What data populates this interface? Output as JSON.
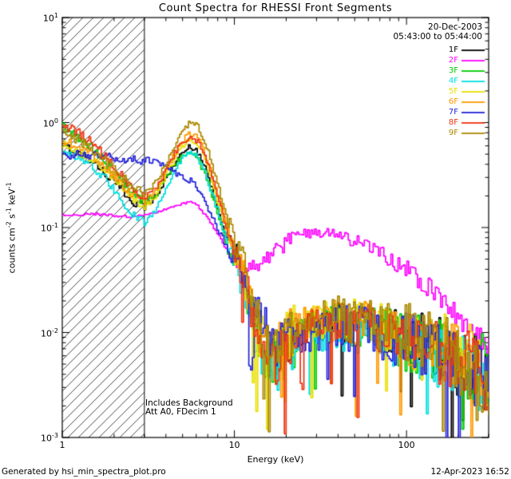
{
  "header": {
    "date": "20-Dec-2003",
    "time_range": "05:43:00 to 05:44:00"
  },
  "annotations": {
    "line1": "Includes Background",
    "line2": "Att A0, FDecim 1"
  },
  "footer": {
    "left": "Generated by hsi_min_spectra_plot.pro",
    "right": "12-Apr-2023 16:52"
  },
  "chart_data": {
    "type": "line",
    "title": "Count Spectra for RHESSI Front Segments",
    "xlabel": "Energy (keV)",
    "ylabel": "counts cm⁻² s⁻¹ keV⁻¹",
    "ylabel_parts": [
      {
        "t": "counts cm"
      },
      {
        "sup": "-2"
      },
      {
        "t": " s"
      },
      {
        "sup": "-1"
      },
      {
        "t": " keV"
      },
      {
        "sup": "-1"
      }
    ],
    "xscale": "log",
    "yscale": "log",
    "xlim": [
      1,
      300
    ],
    "ylim": [
      0.001,
      10
    ],
    "x_major_ticks": [
      1,
      10,
      100
    ],
    "x_tick_labels": [
      "1",
      "10",
      "100"
    ],
    "y_tick_exponents": [
      1,
      0,
      -1,
      -2,
      -3
    ],
    "hatched_low_energy_region_kev": [
      1,
      3
    ],
    "legend_position": "top-right",
    "grid": false,
    "series": [
      {
        "name": "1F",
        "color": "#000000",
        "x": [
          1.0,
          1.2,
          1.45,
          1.75,
          2.1,
          2.5,
          3.0,
          3.5,
          4.0,
          4.5,
          5.0,
          5.5,
          6.0,
          6.5,
          7.0,
          8.0,
          9.0,
          10,
          11,
          12,
          13,
          15,
          17,
          20,
          25,
          30,
          40,
          50,
          60,
          80,
          100,
          130,
          170,
          220,
          300
        ],
        "y": [
          0.6,
          0.52,
          0.45,
          0.33,
          0.25,
          0.18,
          0.16,
          0.2,
          0.3,
          0.42,
          0.52,
          0.6,
          0.55,
          0.42,
          0.3,
          0.15,
          0.08,
          0.05,
          0.04,
          0.022,
          0.013,
          0.007,
          0.006,
          0.008,
          0.011,
          0.012,
          0.013,
          0.012,
          0.012,
          0.01,
          0.009,
          0.008,
          0.006,
          0.005,
          0.004
        ]
      },
      {
        "name": "2F",
        "color": "#ff00ff",
        "x": [
          1.0,
          1.5,
          2.0,
          2.5,
          3.0,
          3.5,
          4.0,
          4.5,
          5.0,
          5.5,
          6.0,
          6.5,
          7.0,
          8.0,
          9.0,
          10,
          12,
          14,
          17,
          20,
          25,
          30,
          35,
          40,
          50,
          60,
          80,
          100,
          130,
          170,
          220,
          300
        ],
        "y": [
          0.13,
          0.135,
          0.13,
          0.125,
          0.13,
          0.14,
          0.15,
          0.16,
          0.17,
          0.175,
          0.165,
          0.14,
          0.12,
          0.085,
          0.06,
          0.048,
          0.04,
          0.045,
          0.058,
          0.072,
          0.088,
          0.092,
          0.09,
          0.085,
          0.075,
          0.065,
          0.05,
          0.04,
          0.028,
          0.018,
          0.012,
          0.007
        ]
      },
      {
        "name": "3F",
        "color": "#00cc00",
        "x": [
          1.0,
          1.2,
          1.45,
          1.75,
          2.1,
          2.5,
          3.0,
          3.5,
          4.0,
          4.5,
          5.0,
          5.5,
          6.0,
          6.5,
          7.0,
          8.0,
          9.0,
          10,
          11,
          12,
          13,
          15,
          17,
          20,
          25,
          30,
          40,
          50,
          60,
          80,
          100,
          130,
          170,
          220,
          300
        ],
        "y": [
          0.9,
          0.75,
          0.58,
          0.42,
          0.3,
          0.22,
          0.17,
          0.21,
          0.3,
          0.4,
          0.47,
          0.5,
          0.46,
          0.36,
          0.26,
          0.13,
          0.07,
          0.045,
          0.035,
          0.02,
          0.012,
          0.006,
          0.005,
          0.007,
          0.01,
          0.011,
          0.012,
          0.011,
          0.011,
          0.009,
          0.008,
          0.007,
          0.006,
          0.005,
          0.004
        ]
      },
      {
        "name": "4F",
        "color": "#00e0e0",
        "x": [
          1.0,
          1.2,
          1.45,
          1.75,
          2.1,
          2.5,
          3.0,
          3.5,
          4.0,
          4.5,
          5.0,
          5.5,
          6.0,
          6.5,
          7.0,
          8.0,
          9.0,
          10,
          11,
          12,
          13,
          15,
          17,
          20,
          25,
          30,
          40,
          50,
          60,
          80,
          100,
          130,
          170,
          220,
          300
        ],
        "y": [
          0.55,
          0.48,
          0.4,
          0.3,
          0.2,
          0.14,
          0.11,
          0.15,
          0.24,
          0.36,
          0.46,
          0.52,
          0.48,
          0.38,
          0.27,
          0.14,
          0.07,
          0.045,
          0.034,
          0.018,
          0.01,
          0.005,
          0.004,
          0.007,
          0.009,
          0.01,
          0.011,
          0.01,
          0.01,
          0.009,
          0.008,
          0.006,
          0.005,
          0.004,
          0.003
        ]
      },
      {
        "name": "5F",
        "color": "#e8e000",
        "x": [
          1.0,
          1.2,
          1.45,
          1.75,
          2.1,
          2.5,
          3.0,
          3.5,
          4.0,
          4.5,
          5.0,
          5.5,
          6.0,
          6.5,
          7.0,
          8.0,
          9.0,
          10,
          11,
          12,
          13,
          15,
          17,
          20,
          25,
          30,
          40,
          50,
          60,
          80,
          100,
          130,
          170,
          220,
          300
        ],
        "y": [
          0.62,
          0.55,
          0.45,
          0.35,
          0.26,
          0.19,
          0.16,
          0.2,
          0.32,
          0.46,
          0.6,
          0.7,
          0.64,
          0.5,
          0.35,
          0.17,
          0.09,
          0.055,
          0.042,
          0.024,
          0.014,
          0.007,
          0.006,
          0.009,
          0.012,
          0.013,
          0.014,
          0.013,
          0.012,
          0.011,
          0.009,
          0.008,
          0.007,
          0.006,
          0.005
        ]
      },
      {
        "name": "6F",
        "color": "#ff9900",
        "x": [
          1.0,
          1.2,
          1.45,
          1.75,
          2.1,
          2.5,
          3.0,
          3.5,
          4.0,
          4.5,
          5.0,
          5.5,
          6.0,
          6.5,
          7.0,
          8.0,
          9.0,
          10,
          11,
          12,
          13,
          15,
          17,
          20,
          25,
          30,
          40,
          50,
          60,
          80,
          100,
          130,
          170,
          220,
          300
        ],
        "y": [
          0.68,
          0.6,
          0.5,
          0.38,
          0.28,
          0.21,
          0.18,
          0.23,
          0.36,
          0.52,
          0.68,
          0.8,
          0.73,
          0.57,
          0.4,
          0.2,
          0.1,
          0.06,
          0.045,
          0.025,
          0.014,
          0.007,
          0.006,
          0.009,
          0.012,
          0.013,
          0.013,
          0.012,
          0.012,
          0.01,
          0.009,
          0.008,
          0.006,
          0.005,
          0.004
        ]
      },
      {
        "name": "7F",
        "color": "#2222dd",
        "x": [
          1.0,
          1.5,
          2.0,
          2.5,
          3.0,
          3.5,
          4.0,
          4.5,
          5.0,
          5.5,
          6.0,
          6.5,
          7.0,
          8.0,
          9.0,
          10,
          11,
          12,
          14,
          17,
          20,
          25,
          30,
          40,
          50,
          60,
          80,
          100,
          130,
          170,
          220,
          300
        ],
        "y": [
          0.5,
          0.48,
          0.46,
          0.45,
          0.44,
          0.42,
          0.38,
          0.33,
          0.3,
          0.28,
          0.24,
          0.19,
          0.15,
          0.095,
          0.065,
          0.048,
          0.038,
          0.025,
          0.013,
          0.008,
          0.008,
          0.009,
          0.01,
          0.011,
          0.011,
          0.01,
          0.009,
          0.008,
          0.007,
          0.006,
          0.005,
          0.004
        ]
      },
      {
        "name": "8F",
        "color": "#ee3311",
        "x": [
          1.0,
          1.2,
          1.45,
          1.75,
          2.1,
          2.5,
          3.0,
          3.5,
          4.0,
          4.5,
          5.0,
          5.5,
          6.0,
          6.5,
          7.0,
          8.0,
          9.0,
          10,
          11,
          12,
          13,
          15,
          17,
          20,
          25,
          30,
          40,
          50,
          60,
          80,
          100,
          130,
          170,
          220,
          300
        ],
        "y": [
          0.95,
          0.82,
          0.65,
          0.48,
          0.34,
          0.24,
          0.19,
          0.24,
          0.36,
          0.52,
          0.65,
          0.74,
          0.68,
          0.53,
          0.38,
          0.19,
          0.09,
          0.055,
          0.042,
          0.023,
          0.013,
          0.006,
          0.005,
          0.008,
          0.011,
          0.012,
          0.012,
          0.011,
          0.011,
          0.009,
          0.008,
          0.007,
          0.006,
          0.005,
          0.004
        ]
      },
      {
        "name": "9F",
        "color": "#aa8800",
        "x": [
          1.0,
          1.2,
          1.45,
          1.75,
          2.1,
          2.5,
          3.0,
          3.5,
          4.0,
          4.5,
          5.0,
          5.5,
          6.0,
          6.5,
          7.0,
          8.0,
          9.0,
          10,
          11,
          12,
          13,
          15,
          17,
          20,
          25,
          30,
          40,
          50,
          60,
          80,
          100,
          130,
          170,
          220,
          300
        ],
        "y": [
          0.8,
          0.7,
          0.57,
          0.44,
          0.33,
          0.25,
          0.21,
          0.27,
          0.42,
          0.62,
          0.82,
          1.0,
          0.95,
          0.75,
          0.52,
          0.25,
          0.12,
          0.07,
          0.05,
          0.028,
          0.016,
          0.008,
          0.006,
          0.009,
          0.012,
          0.013,
          0.014,
          0.013,
          0.012,
          0.011,
          0.01,
          0.008,
          0.007,
          0.005,
          0.002
        ]
      }
    ]
  }
}
